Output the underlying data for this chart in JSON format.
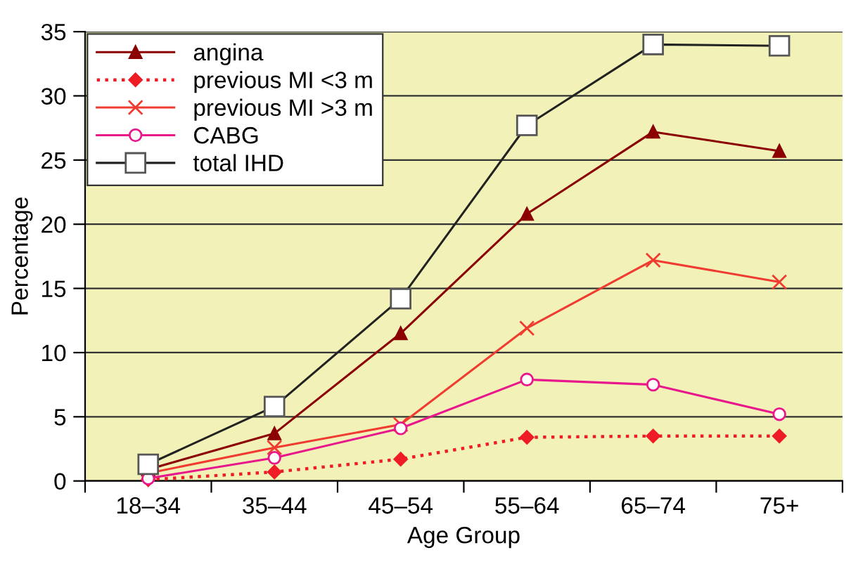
{
  "chart_data": {
    "type": "line",
    "xlabel": "Age Group",
    "ylabel": "Percentage",
    "categories": [
      "18–34",
      "35–44",
      "45–54",
      "55–64",
      "65–74",
      "75+"
    ],
    "ylim": [
      0,
      35
    ],
    "yticks": [
      0,
      5,
      10,
      15,
      20,
      25,
      30,
      35
    ],
    "grid": "y",
    "legend": "top left",
    "series": [
      {
        "name": "angina",
        "color": "#8b0000",
        "marker": "triangle",
        "line_style": "solid",
        "values": [
          0.9,
          3.7,
          11.5,
          20.8,
          27.2,
          25.7
        ]
      },
      {
        "name": "previous MI <3 m",
        "color": "#ee1c25",
        "marker": "diamond",
        "line_style": "dotted",
        "values": [
          0.1,
          0.7,
          1.7,
          3.4,
          3.5,
          3.5
        ]
      },
      {
        "name": "previous MI >3 m",
        "color": "#f03c30",
        "marker": "cross",
        "line_style": "solid",
        "values": [
          0.6,
          2.6,
          4.4,
          11.9,
          17.2,
          15.5
        ]
      },
      {
        "name": "CABG",
        "color": "#e8188c",
        "marker": "circle",
        "line_style": "solid",
        "values": [
          0.2,
          1.8,
          4.1,
          7.9,
          7.5,
          5.2
        ]
      },
      {
        "name": "total IHD",
        "color": "#222222",
        "marker": "square",
        "line_style": "solid",
        "values": [
          1.3,
          5.8,
          14.2,
          27.7,
          34.0,
          33.9
        ]
      }
    ]
  }
}
